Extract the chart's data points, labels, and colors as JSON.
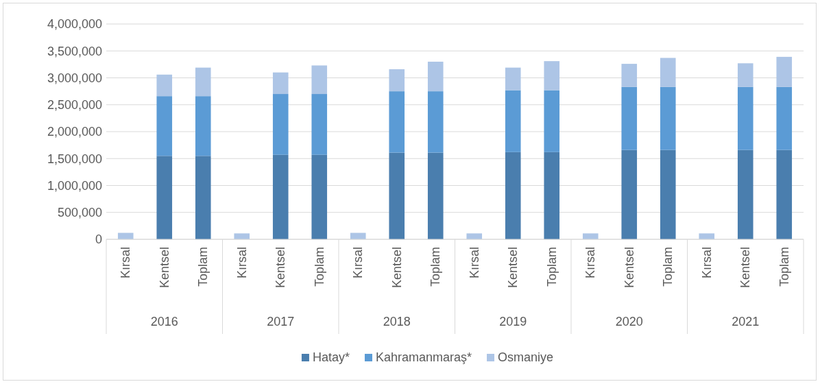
{
  "chart_data": {
    "type": "bar",
    "stacked": true,
    "categories": [
      "Kırsal",
      "Kentsel",
      "Toplam",
      "Kırsal",
      "Kentsel",
      "Toplam",
      "Kırsal",
      "Kentsel",
      "Toplam",
      "Kırsal",
      "Kentsel",
      "Toplam",
      "Kırsal",
      "Kentsel",
      "Toplam",
      "Kırsal",
      "Kentsel",
      "Toplam"
    ],
    "annotations": [
      "2016",
      "2017",
      "2018",
      "2019",
      "2020",
      "2021"
    ],
    "series": [
      {
        "name": "Hatay*",
        "color": "#4a7eae",
        "values": [
          null,
          1550000,
          1550000,
          null,
          1570000,
          1570000,
          null,
          1610000,
          1610000,
          null,
          1620000,
          1620000,
          null,
          1660000,
          1660000,
          null,
          1660000,
          1660000
        ]
      },
      {
        "name": "Kahramanmaraş*",
        "color": "#5b9bd5",
        "values": [
          null,
          1110000,
          1110000,
          null,
          1130000,
          1130000,
          null,
          1140000,
          1140000,
          null,
          1150000,
          1150000,
          null,
          1170000,
          1170000,
          null,
          1170000,
          1170000
        ]
      },
      {
        "name": "Osmaniye",
        "color": "#adc5e6",
        "values": [
          120000,
          400000,
          530000,
          110000,
          400000,
          530000,
          120000,
          410000,
          550000,
          110000,
          420000,
          540000,
          110000,
          430000,
          540000,
          110000,
          440000,
          560000
        ]
      }
    ],
    "ylim": [
      0,
      4000000
    ],
    "yticks": [
      {
        "value": 0,
        "label": "0"
      },
      {
        "value": 500000,
        "label": "500,000"
      },
      {
        "value": 1000000,
        "label": "1,000,000"
      },
      {
        "value": 1500000,
        "label": "1,500,000"
      },
      {
        "value": 2000000,
        "label": "2,000,000"
      },
      {
        "value": 2500000,
        "label": "2,500,000"
      },
      {
        "value": 3000000,
        "label": "3,000,000"
      },
      {
        "value": 3500000,
        "label": "3,500,000"
      },
      {
        "value": 4000000,
        "label": "4,000,000"
      }
    ],
    "grid": "y",
    "legend": "bottom"
  }
}
